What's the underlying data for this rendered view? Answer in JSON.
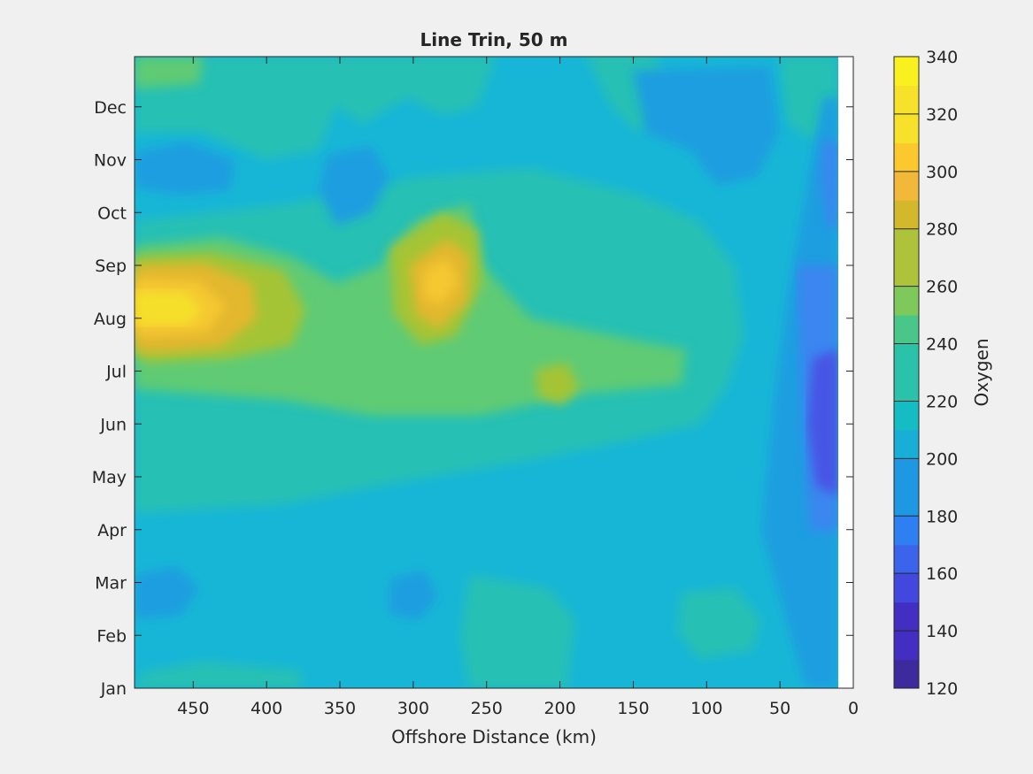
{
  "chart_data": {
    "type": "heatmap",
    "subtype": "filled-contour",
    "title": "Line Trin, 50 m",
    "xlabel": "Offshore Distance (km)",
    "ylabel": "",
    "x_reversed": true,
    "xlim": [
      0,
      490
    ],
    "x_ticks": [
      450,
      400,
      350,
      300,
      250,
      200,
      150,
      100,
      50,
      0
    ],
    "data_x_range": [
      10,
      490
    ],
    "y_ticks": [
      "Jan",
      "Feb",
      "Mar",
      "Apr",
      "May",
      "Jun",
      "Jul",
      "Aug",
      "Sep",
      "Oct",
      "Nov",
      "Dec"
    ],
    "y_range_months": [
      0,
      11.95
    ],
    "colorbar": {
      "label": "Oxygen",
      "min": 120,
      "max": 340,
      "step": 10,
      "tick_labels": [
        "120",
        "140",
        "160",
        "180",
        "200",
        "220",
        "240",
        "260",
        "280",
        "300",
        "320",
        "340"
      ],
      "colormap": "parula"
    },
    "grid": false,
    "features": [
      {
        "desc": "maximum",
        "x": 455,
        "y_month": 7.05,
        "value": 320
      },
      {
        "desc": "maximum",
        "x": 285,
        "y_month": 7.5,
        "value": 305
      },
      {
        "desc": "local",
        "x": 200,
        "y_month": 5.95,
        "value": 275
      },
      {
        "desc": "minimum",
        "x": 18,
        "y_month": 5.0,
        "value": 160
      }
    ]
  }
}
